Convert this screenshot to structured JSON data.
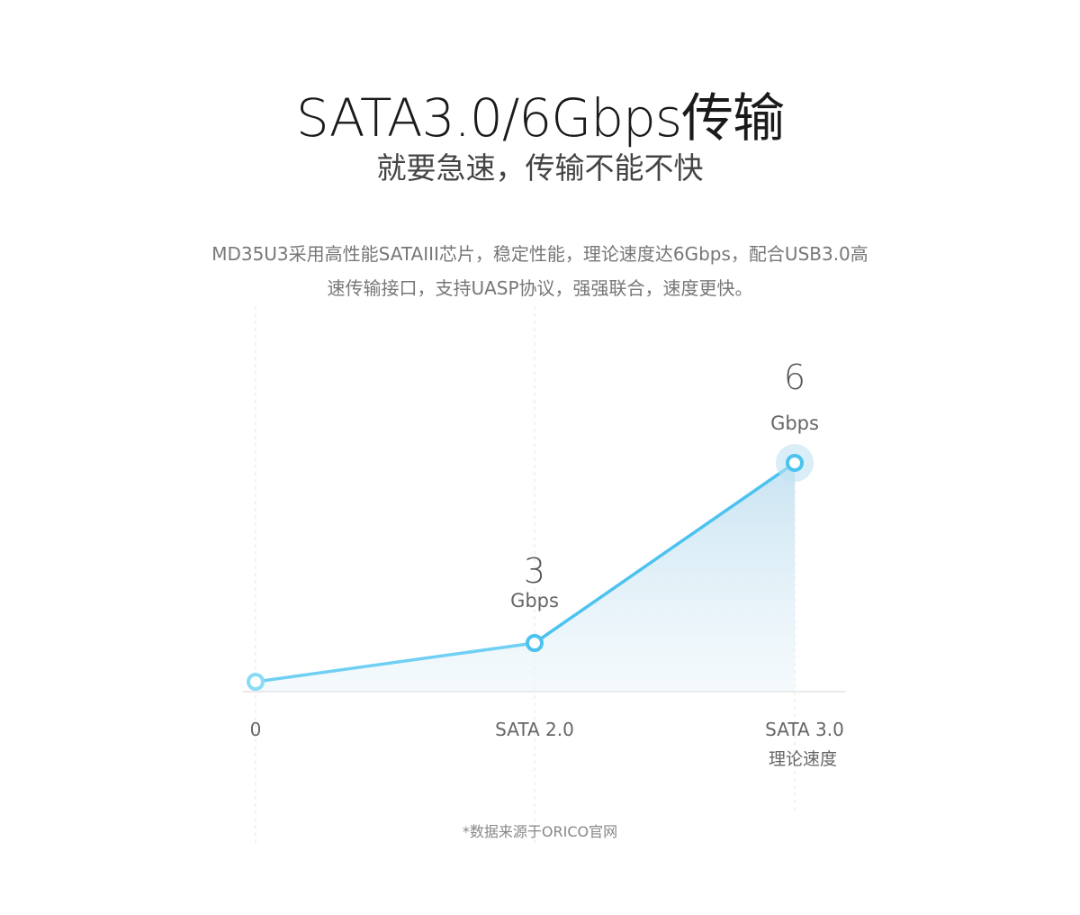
{
  "header": {
    "title": "SATA3.0/6Gbps传输",
    "subtitle": "就要急速，传输不能不快",
    "description_line1": "MD35U3采用高性能SATAIII芯片，稳定性能，理论速度达6Gbps，配合USB3.0高",
    "description_line2": "速传输接口，支持UASP协议，强强联合，速度更快。"
  },
  "chart_data": {
    "type": "area",
    "categories": [
      "0",
      "SATA 2.0",
      "SATA 3.0"
    ],
    "category_sublabels": [
      "",
      "",
      "理论速度"
    ],
    "values": [
      0,
      3,
      6
    ],
    "data_labels": [
      {
        "value": "",
        "unit": ""
      },
      {
        "value": "3",
        "unit": "Gbps"
      },
      {
        "value": "6",
        "unit": "Gbps"
      }
    ],
    "unit": "Gbps",
    "grid": false,
    "colors": {
      "line": "#4cc3ef",
      "fill": "#cfe7f3",
      "marker": "#4cc3ef",
      "halo": "#bfe3f2"
    }
  },
  "footnote": "*数据来源于ORICO官网"
}
